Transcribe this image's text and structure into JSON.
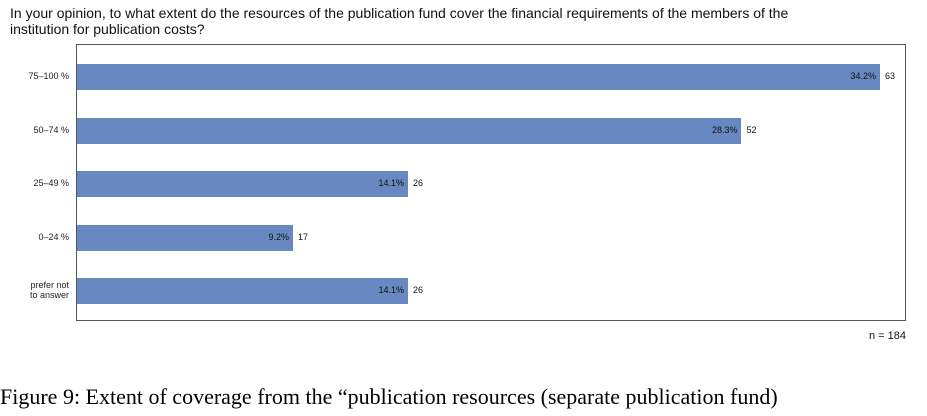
{
  "question": "In your opinion, to what extent do the resources of the publication fund cover the financial requirements of the members of the institution for publication costs?",
  "chart_data": {
    "type": "bar",
    "orientation": "horizontal",
    "categories": [
      "75–100 %",
      "50–74 %",
      "25–49 %",
      "0–24 %",
      "prefer not to answer"
    ],
    "percent_labels": [
      "34.2%",
      "28.3%",
      "14.1%",
      "9.2%",
      "14.1%"
    ],
    "percentages": [
      34.2,
      28.3,
      14.1,
      9.2,
      14.1
    ],
    "values": [
      63,
      52,
      26,
      17,
      26
    ],
    "bar_color": "#6788c0",
    "n_label": "n = 184"
  },
  "caption": "Figure 9:   Extent of coverage from the “publication resources (separate publication fund)"
}
